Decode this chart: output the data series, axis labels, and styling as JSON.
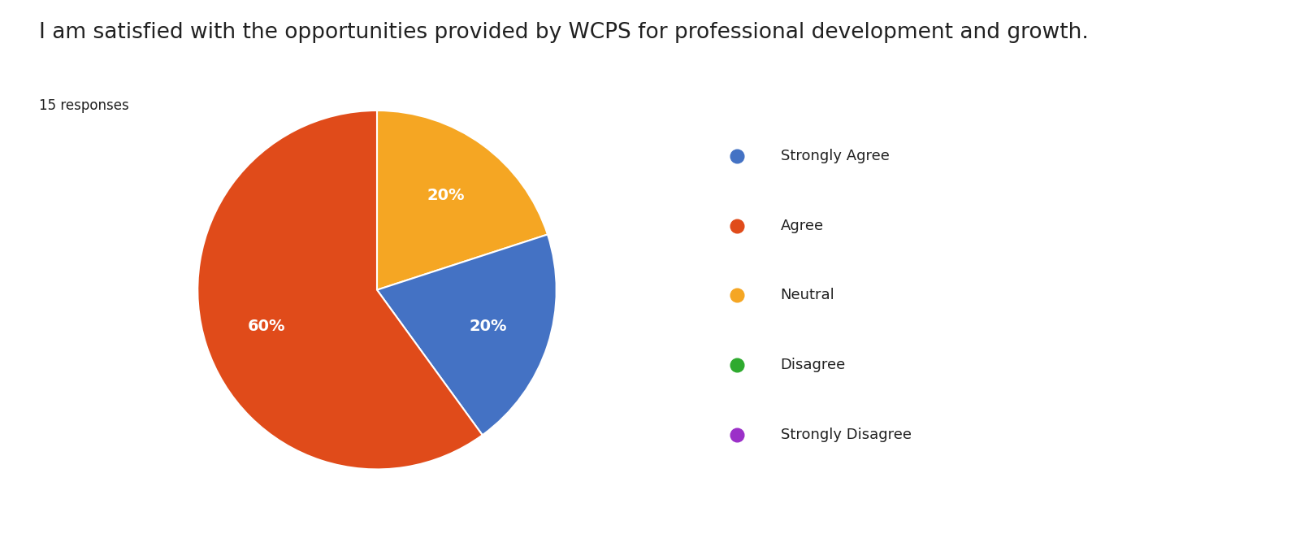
{
  "title": "I am satisfied with the opportunities provided by WCPS for professional development and growth.",
  "subtitle": "15 responses",
  "slices": [
    {
      "label": "Strongly Agree",
      "value": 20,
      "color": "#4472C4"
    },
    {
      "label": "Agree",
      "value": 60,
      "color": "#E04B1A"
    },
    {
      "label": "Neutral",
      "value": 20,
      "color": "#F5A623"
    },
    {
      "label": "Disagree",
      "value": 0,
      "color": "#2EAA2E"
    },
    {
      "label": "Strongly Disagree",
      "value": 0,
      "color": "#9B30C8"
    }
  ],
  "legend_colors": [
    "#4472C4",
    "#E04B1A",
    "#F5A623",
    "#2EAA2E",
    "#9B30C8"
  ],
  "legend_labels": [
    "Strongly Agree",
    "Agree",
    "Neutral",
    "Disagree",
    "Strongly Disagree"
  ],
  "title_fontsize": 19,
  "subtitle_fontsize": 12,
  "pct_fontsize": 14,
  "legend_fontsize": 13,
  "background_color": "#ffffff",
  "text_color": "#212121",
  "wedge_values": [
    20,
    20,
    60
  ],
  "wedge_colors": [
    "#F5A623",
    "#4472C4",
    "#E04B1A"
  ]
}
